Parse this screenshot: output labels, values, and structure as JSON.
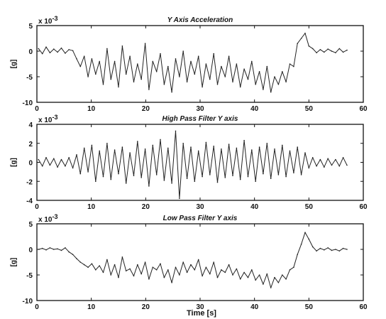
{
  "figure": {
    "xlabel": "Time [s]"
  },
  "chart_data": [
    {
      "type": "line",
      "title": "Y Axis Acceleration",
      "ylabel": "[g]",
      "y_multiplier": "x 10",
      "y_exponent": "-3",
      "xlim": [
        0,
        60
      ],
      "ylim": [
        -10,
        5
      ],
      "xticks": [
        0,
        10,
        20,
        30,
        40,
        50,
        60
      ],
      "yticks": [
        5,
        0,
        -5,
        -10
      ],
      "grid": false,
      "series": [
        {
          "color": "#222222",
          "x": [
            0.3,
            1.0,
            1.7,
            2.4,
            3.1,
            3.8,
            4.5,
            5.2,
            5.9,
            6.6,
            7.3,
            8.0,
            8.7,
            9.4,
            10.1,
            10.8,
            11.5,
            12.2,
            12.9,
            13.6,
            14.3,
            15.0,
            15.7,
            16.4,
            17.1,
            17.8,
            18.5,
            19.2,
            19.9,
            20.6,
            21.3,
            22.0,
            22.7,
            23.4,
            24.1,
            24.8,
            25.5,
            26.2,
            26.9,
            27.6,
            28.3,
            29.0,
            29.7,
            30.4,
            31.1,
            31.8,
            32.5,
            33.2,
            33.9,
            34.6,
            35.3,
            36.0,
            36.7,
            37.4,
            38.1,
            38.8,
            39.5,
            40.2,
            40.9,
            41.6,
            42.3,
            43.0,
            43.7,
            44.4,
            45.1,
            45.8,
            46.5,
            47.2,
            47.9,
            48.6,
            49.3,
            50.0,
            50.7,
            51.4,
            52.1,
            52.8,
            53.5,
            54.2,
            54.9,
            55.6,
            56.3,
            57.0
          ],
          "y": [
            0.5,
            -0.5,
            0.8,
            -0.3,
            0.4,
            -0.2,
            0.6,
            -0.4,
            0.3,
            0.1,
            -1.5,
            -3.0,
            -1.0,
            -5.0,
            -1.5,
            -4.5,
            -2.0,
            -6.5,
            0.5,
            -5.5,
            -2.0,
            -7.0,
            1.0,
            -4.5,
            -1.0,
            -6.0,
            -2.5,
            -5.5,
            1.5,
            -7.5,
            -2.0,
            -4.0,
            -0.5,
            -6.5,
            -3.0,
            -8.0,
            -1.5,
            -5.0,
            0.0,
            -6.0,
            -2.0,
            -4.5,
            -1.0,
            -7.0,
            -2.5,
            -5.5,
            -0.5,
            -6.5,
            -3.0,
            -5.0,
            -1.0,
            -6.0,
            -2.5,
            -7.0,
            -3.5,
            -5.5,
            -2.0,
            -6.5,
            -4.0,
            -7.5,
            -3.0,
            -8.0,
            -5.0,
            -6.5,
            -4.0,
            -6.0,
            -2.5,
            -3.0,
            1.5,
            2.5,
            3.5,
            1.0,
            0.5,
            -0.3,
            0.3,
            -0.2,
            0.4,
            0.0,
            -0.3,
            0.5,
            -0.2,
            0.2
          ]
        }
      ]
    },
    {
      "type": "line",
      "title": "High Pass Filter Y axis",
      "ylabel": "[g]",
      "y_multiplier": "x 10",
      "y_exponent": "-3",
      "xlim": [
        0,
        60
      ],
      "ylim": [
        -4,
        4
      ],
      "xticks": [
        0,
        10,
        20,
        30,
        40,
        50,
        60
      ],
      "yticks": [
        4,
        2,
        0,
        -2,
        -4
      ],
      "grid": false,
      "series": [
        {
          "color": "#222222",
          "x": [
            0.3,
            1.0,
            1.7,
            2.4,
            3.1,
            3.8,
            4.5,
            5.2,
            5.9,
            6.6,
            7.3,
            8.0,
            8.7,
            9.4,
            10.1,
            10.8,
            11.5,
            12.2,
            12.9,
            13.6,
            14.3,
            15.0,
            15.7,
            16.4,
            17.1,
            17.8,
            18.5,
            19.2,
            19.9,
            20.6,
            21.3,
            22.0,
            22.7,
            23.4,
            24.1,
            24.8,
            25.5,
            26.2,
            26.9,
            27.6,
            28.3,
            29.0,
            29.7,
            30.4,
            31.1,
            31.8,
            32.5,
            33.2,
            33.9,
            34.6,
            35.3,
            36.0,
            36.7,
            37.4,
            38.1,
            38.8,
            39.5,
            40.2,
            40.9,
            41.6,
            42.3,
            43.0,
            43.7,
            44.4,
            45.1,
            45.8,
            46.5,
            47.2,
            47.9,
            48.6,
            49.3,
            50.0,
            50.7,
            51.4,
            52.1,
            52.8,
            53.5,
            54.2,
            54.9,
            55.6,
            56.3,
            57.0
          ],
          "y": [
            0.3,
            -0.4,
            0.5,
            -0.3,
            0.4,
            -0.5,
            0.3,
            -0.4,
            0.5,
            -0.6,
            0.8,
            -1.2,
            1.5,
            -1.0,
            1.8,
            -2.0,
            1.2,
            -1.5,
            2.0,
            -1.8,
            1.3,
            -1.2,
            1.6,
            -2.2,
            1.0,
            -1.4,
            2.2,
            -1.6,
            1.4,
            -2.5,
            1.8,
            -1.3,
            2.4,
            -1.9,
            1.5,
            -2.2,
            3.3,
            -3.8,
            2.0,
            -1.7,
            1.6,
            -2.0,
            1.2,
            -1.5,
            2.1,
            -1.3,
            1.7,
            -2.1,
            1.4,
            -1.6,
            1.9,
            -1.4,
            1.5,
            -1.8,
            2.3,
            -1.5,
            1.3,
            -2.0,
            1.6,
            -1.2,
            2.0,
            -1.7,
            1.4,
            -1.3,
            1.8,
            -1.5,
            1.2,
            -1.1,
            1.6,
            -1.3,
            1.0,
            -0.6,
            0.5,
            -0.4,
            0.3,
            -0.5,
            0.4,
            -0.3,
            0.3,
            -0.4,
            0.5,
            -0.3
          ]
        }
      ]
    },
    {
      "type": "line",
      "title": "Low Pass Filter Y axis",
      "ylabel": "[g]",
      "y_multiplier": "x 10",
      "y_exponent": "-3",
      "xlabel": "Time [s]",
      "xlim": [
        0,
        60
      ],
      "ylim": [
        -10,
        5
      ],
      "xticks": [
        0,
        10,
        20,
        30,
        40,
        50,
        60
      ],
      "yticks": [
        5,
        0,
        -5,
        -10
      ],
      "grid": false,
      "series": [
        {
          "color": "#222222",
          "x": [
            0.3,
            1.0,
            1.7,
            2.4,
            3.1,
            3.8,
            4.5,
            5.2,
            5.9,
            6.6,
            7.3,
            8.0,
            8.7,
            9.4,
            10.1,
            10.8,
            11.5,
            12.2,
            12.9,
            13.6,
            14.3,
            15.0,
            15.7,
            16.4,
            17.1,
            17.8,
            18.5,
            19.2,
            19.9,
            20.6,
            21.3,
            22.0,
            22.7,
            23.4,
            24.1,
            24.8,
            25.5,
            26.2,
            26.9,
            27.6,
            28.3,
            29.0,
            29.7,
            30.4,
            31.1,
            31.8,
            32.5,
            33.2,
            33.9,
            34.6,
            35.3,
            36.0,
            36.7,
            37.4,
            38.1,
            38.8,
            39.5,
            40.2,
            40.9,
            41.6,
            42.3,
            43.0,
            43.7,
            44.4,
            45.1,
            45.8,
            46.5,
            47.2,
            47.9,
            48.6,
            49.3,
            50.0,
            50.7,
            51.4,
            52.1,
            52.8,
            53.5,
            54.2,
            54.9,
            55.6,
            56.3,
            57.0
          ],
          "y": [
            0.0,
            0.2,
            -0.1,
            0.3,
            0.0,
            0.1,
            -0.2,
            0.3,
            -0.5,
            -1.0,
            -1.8,
            -2.5,
            -3.0,
            -3.5,
            -2.8,
            -4.0,
            -3.2,
            -4.5,
            -2.0,
            -5.0,
            -3.0,
            -5.5,
            -1.5,
            -4.2,
            -3.8,
            -5.2,
            -3.0,
            -4.8,
            -2.5,
            -5.8,
            -3.5,
            -4.0,
            -2.8,
            -5.5,
            -4.0,
            -6.5,
            -3.5,
            -5.0,
            -2.5,
            -4.5,
            -3.0,
            -4.0,
            -2.0,
            -5.2,
            -3.5,
            -4.8,
            -2.5,
            -5.5,
            -4.0,
            -4.5,
            -3.0,
            -5.0,
            -3.8,
            -5.8,
            -4.5,
            -5.5,
            -4.0,
            -6.0,
            -5.0,
            -6.8,
            -4.8,
            -7.5,
            -5.5,
            -6.5,
            -5.0,
            -5.8,
            -4.0,
            -3.5,
            -1.0,
            1.0,
            3.3,
            2.0,
            0.5,
            -0.3,
            0.2,
            -0.1,
            0.3,
            -0.2,
            0.0,
            -0.3,
            0.2,
            0.0
          ]
        }
      ]
    }
  ]
}
